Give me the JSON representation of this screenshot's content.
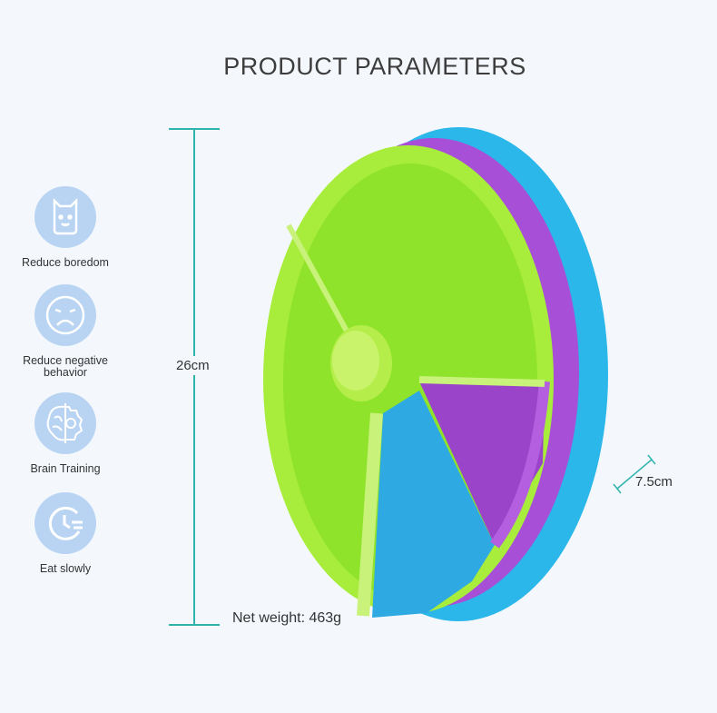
{
  "title": "PRODUCT PARAMETERS",
  "features": [
    {
      "icon": "dog-face-icon",
      "label": "Reduce boredom"
    },
    {
      "icon": "sad-face-icon",
      "label": "Reduce negative behavior"
    },
    {
      "icon": "brain-gear-icon",
      "label": "Brain Training"
    },
    {
      "icon": "clock-icon",
      "label": "Eat slowly"
    }
  ],
  "dimensions": {
    "diameter": "26cm",
    "height": "7.5cm",
    "weight": "Net weight: 463g"
  },
  "colors": {
    "accent": "#2fb3ad",
    "icon_bg": "#b9d4f3",
    "green": "#9be62a",
    "purple": "#a74fd6",
    "blue": "#2bb7ea"
  }
}
